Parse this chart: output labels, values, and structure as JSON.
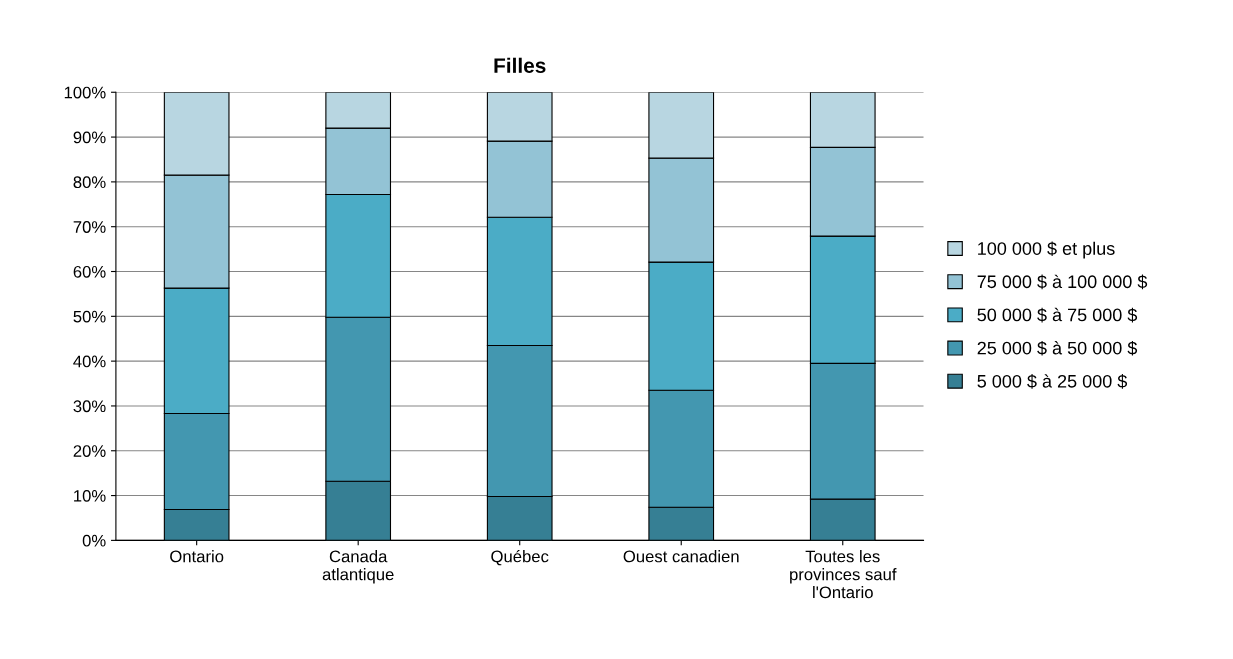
{
  "chart_data": {
    "type": "bar",
    "title": "Filles",
    "stacked": true,
    "categories": [
      "Ontario",
      "Canada\natlantique",
      "Québec",
      "Ouest canadien",
      "Toutes les\nprovinces sauf\nl'Ontario"
    ],
    "series": [
      {
        "name": "5 000 $ à 25 000 $",
        "color": "#367f94",
        "values": [
          6.9,
          13.2,
          9.8,
          7.4,
          9.2
        ]
      },
      {
        "name": "25 000 $ à 50 000 $",
        "color": "#4397b0",
        "values": [
          21.4,
          36.6,
          33.7,
          26.1,
          30.3
        ]
      },
      {
        "name": "50 000 $ à 75 000 $",
        "color": "#4bacc6",
        "values": [
          28.0,
          27.4,
          28.6,
          28.6,
          28.4
        ]
      },
      {
        "name": "75 000 $ à 100 000 $",
        "color": "#93c3d5",
        "values": [
          25.2,
          14.8,
          17.0,
          23.2,
          19.8
        ]
      },
      {
        "name": "100 000 $ et plus",
        "color": "#b8d6e1",
        "values": [
          18.5,
          8.0,
          10.9,
          14.7,
          12.3
        ]
      }
    ],
    "ylim": [
      0,
      100
    ],
    "yticks": [
      {
        "value": 0,
        "label": "0%"
      },
      {
        "value": 10,
        "label": "10%"
      },
      {
        "value": 20,
        "label": "20%"
      },
      {
        "value": 30,
        "label": "30%"
      },
      {
        "value": 40,
        "label": "40%"
      },
      {
        "value": 50,
        "label": "50%"
      },
      {
        "value": 60,
        "label": "60%"
      },
      {
        "value": 70,
        "label": "70%"
      },
      {
        "value": 80,
        "label": "80%"
      },
      {
        "value": 90,
        "label": "90%"
      },
      {
        "value": 100,
        "label": "100%"
      }
    ],
    "grid": "y",
    "legend": "right"
  }
}
